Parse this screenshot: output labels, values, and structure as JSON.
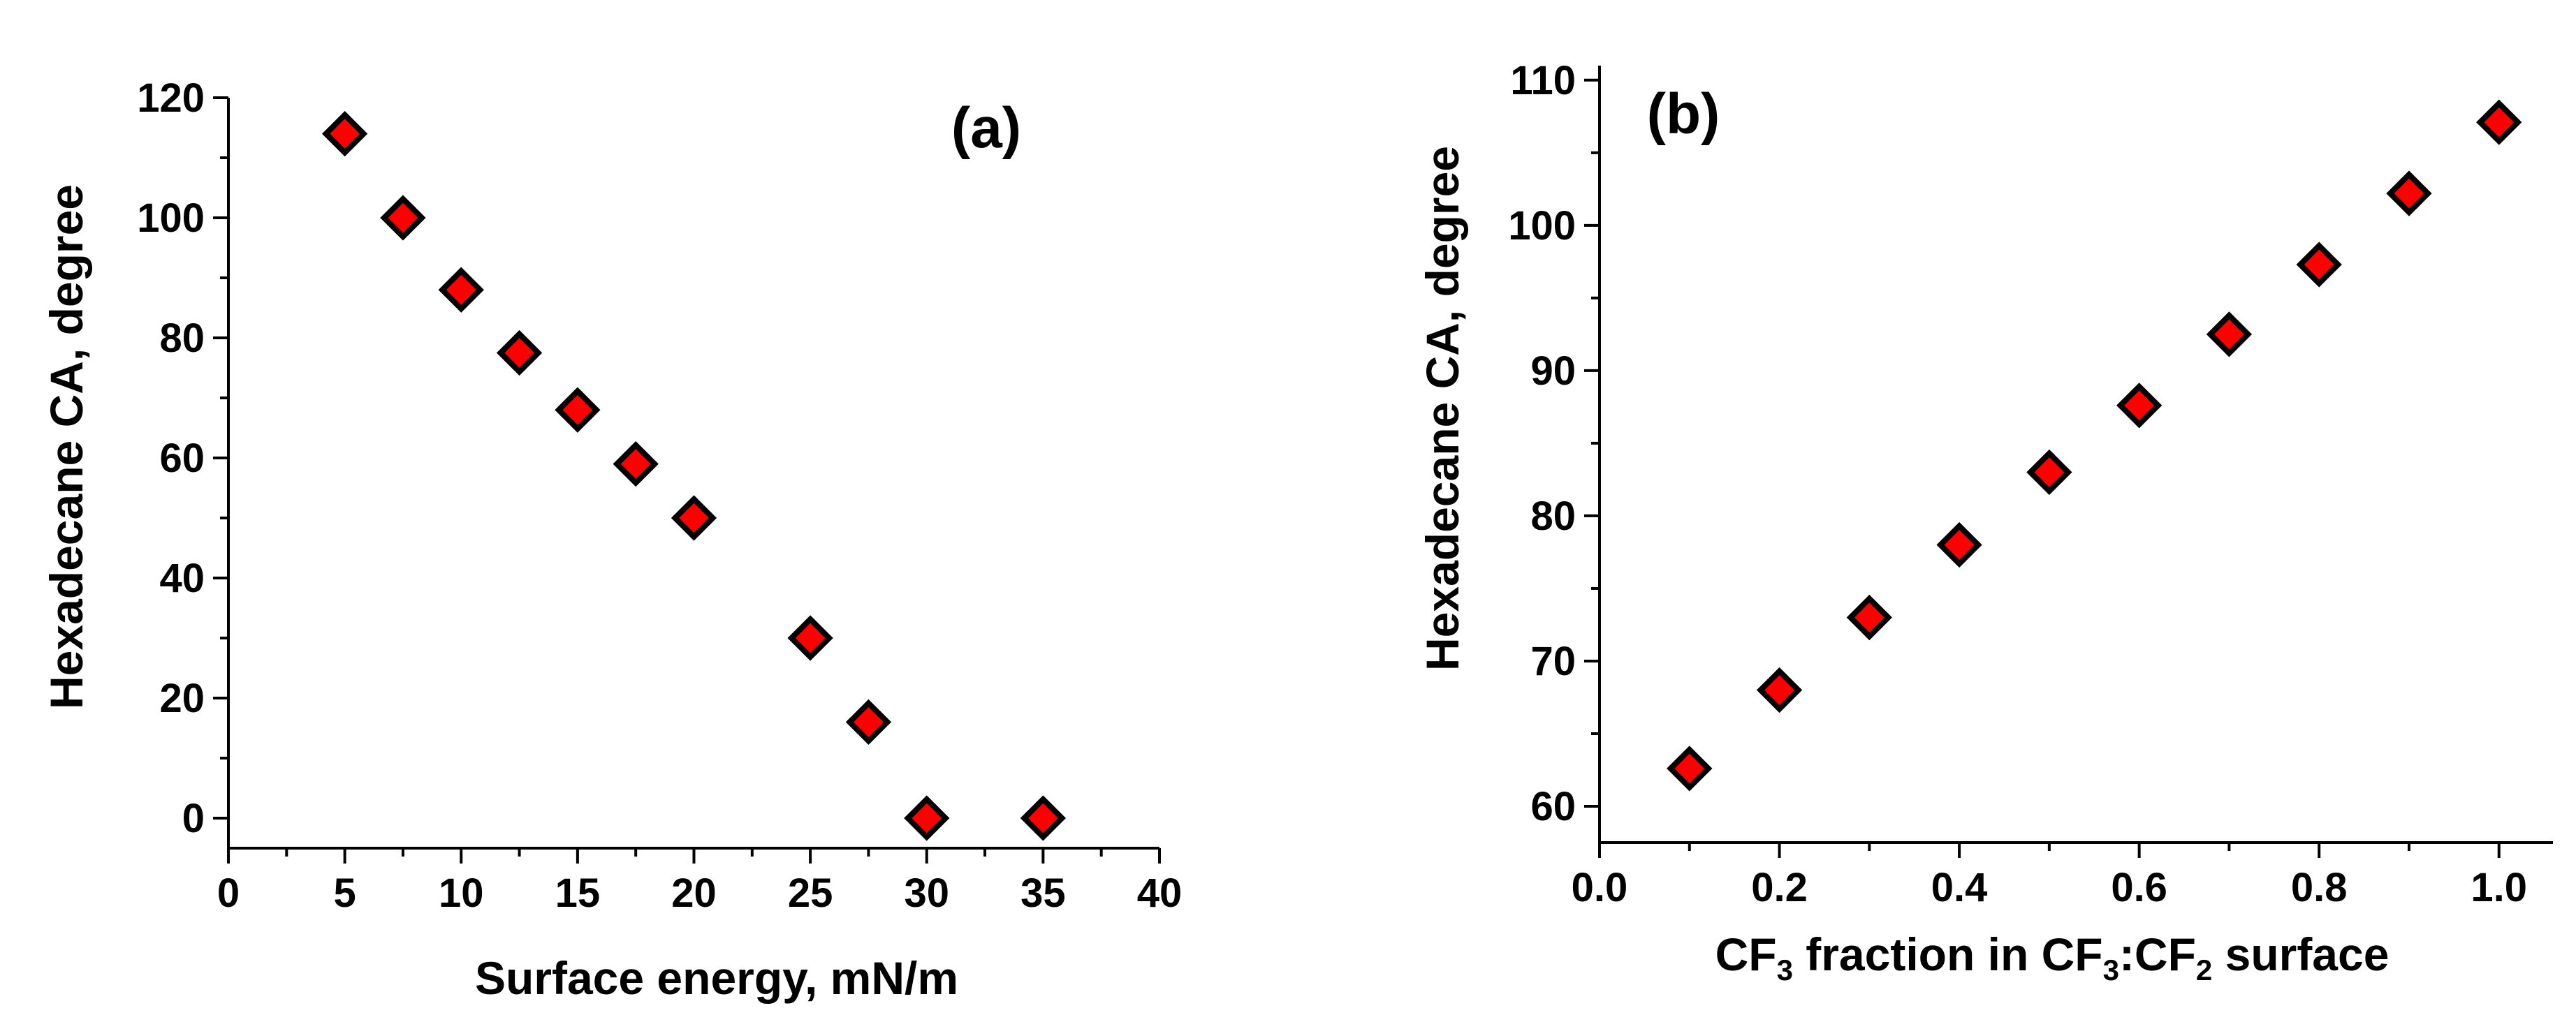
{
  "chart_data": [
    {
      "type": "scatter",
      "panel_label": "(a)",
      "xlabel": "Surface energy, mN/m",
      "ylabel": "Hexadecane CA, degree",
      "xlim": [
        0,
        40
      ],
      "ylim": [
        -5,
        120
      ],
      "x_ticks": [
        0,
        5,
        10,
        15,
        20,
        25,
        30,
        35,
        40
      ],
      "x_tick_labels": [
        "0",
        "5",
        "10",
        "15",
        "20",
        "25",
        "30",
        "35",
        "40"
      ],
      "y_ticks": [
        0,
        20,
        40,
        60,
        80,
        100,
        120
      ],
      "y_tick_labels": [
        "0",
        "20",
        "40",
        "60",
        "80",
        "100",
        "120"
      ],
      "marker": "diamond",
      "marker_color": "#ff0000",
      "marker_edge_color": "#000000",
      "grid": false,
      "x": [
        5,
        7.5,
        10,
        12.5,
        15,
        17.5,
        20,
        25,
        27.5,
        30,
        35
      ],
      "y": [
        114,
        100,
        88,
        77.5,
        68,
        59,
        50,
        30,
        16,
        0,
        0
      ]
    },
    {
      "type": "scatter",
      "panel_label": "(b)",
      "xlabel": {
        "parts": [
          "CF",
          "3",
          " fraction in CF",
          "3",
          ":CF",
          "2",
          " surface"
        ]
      },
      "ylabel": "Hexadecane CA, degree",
      "xlim": [
        0.0,
        1.06
      ],
      "ylim": [
        57.5,
        111
      ],
      "x_ticks": [
        0.0,
        0.2,
        0.4,
        0.6,
        0.8,
        1.0
      ],
      "x_tick_labels": [
        "0.0",
        "0.2",
        "0.4",
        "0.6",
        "0.8",
        "1.0"
      ],
      "y_ticks": [
        60,
        70,
        80,
        90,
        100,
        110
      ],
      "y_tick_labels": [
        "60",
        "70",
        "80",
        "90",
        "100",
        "110"
      ],
      "marker": "diamond",
      "marker_color": "#ff0000",
      "marker_edge_color": "#000000",
      "grid": false,
      "x": [
        0.1,
        0.2,
        0.3,
        0.4,
        0.5,
        0.6,
        0.7,
        0.8,
        0.9,
        1.0
      ],
      "y": [
        62.6,
        68,
        73,
        78,
        83,
        87.6,
        92.5,
        97.3,
        102.2,
        107.1
      ]
    }
  ]
}
